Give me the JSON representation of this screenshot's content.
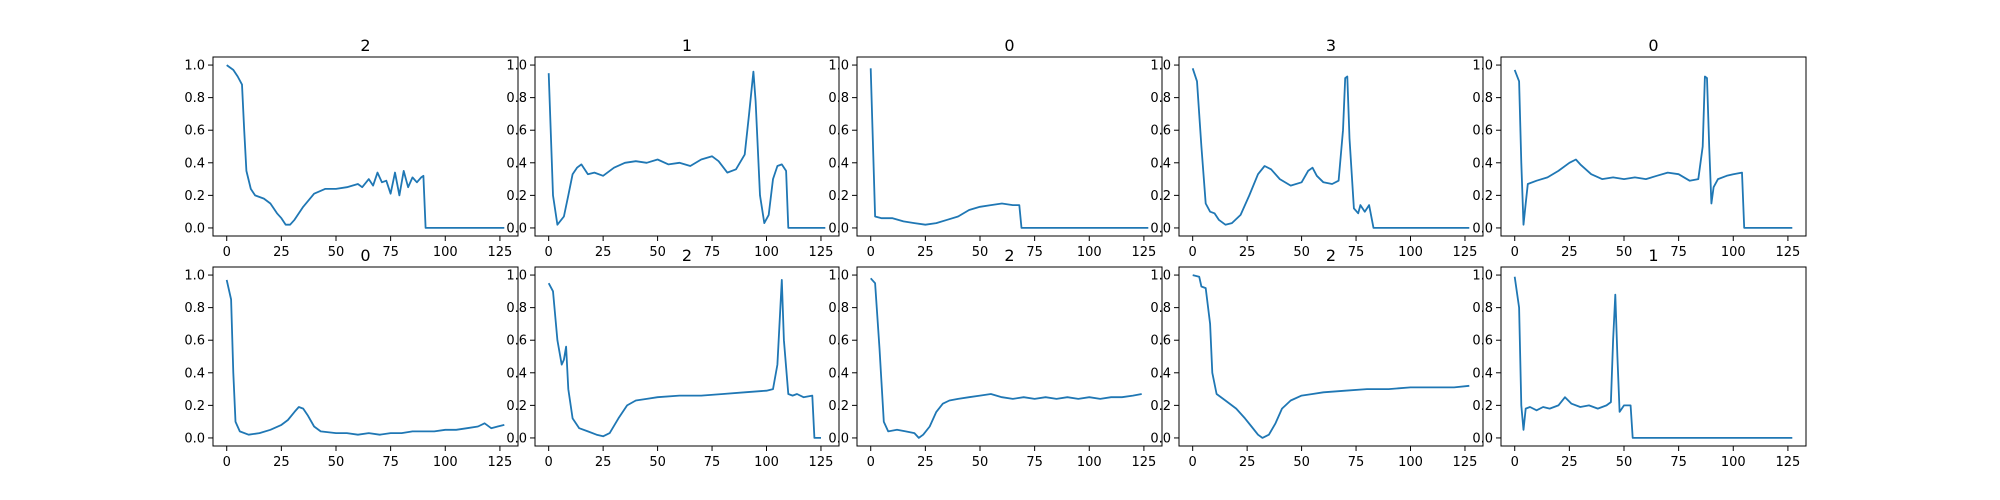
{
  "style": {
    "line_color": "#1f77b4"
  },
  "chart_data": [
    {
      "type": "line",
      "title": "2",
      "x_ticks": [
        "0",
        "25",
        "50",
        "75",
        "100",
        "125"
      ],
      "y_ticks": [
        "0.0",
        "0.2",
        "0.4",
        "0.6",
        "0.8",
        "1.0"
      ],
      "xlim": [
        0,
        127
      ],
      "ylim": [
        0,
        1
      ],
      "points": [
        [
          0,
          1.0
        ],
        [
          3,
          0.97
        ],
        [
          5,
          0.93
        ],
        [
          7,
          0.88
        ],
        [
          8,
          0.6
        ],
        [
          9,
          0.35
        ],
        [
          11,
          0.24
        ],
        [
          13,
          0.2
        ],
        [
          17,
          0.18
        ],
        [
          20,
          0.15
        ],
        [
          23,
          0.09
        ],
        [
          25,
          0.06
        ],
        [
          27,
          0.02
        ],
        [
          29,
          0.02
        ],
        [
          31,
          0.05
        ],
        [
          35,
          0.13
        ],
        [
          40,
          0.21
        ],
        [
          45,
          0.24
        ],
        [
          50,
          0.24
        ],
        [
          55,
          0.25
        ],
        [
          60,
          0.27
        ],
        [
          62,
          0.25
        ],
        [
          65,
          0.3
        ],
        [
          67,
          0.26
        ],
        [
          69,
          0.34
        ],
        [
          71,
          0.28
        ],
        [
          73,
          0.29
        ],
        [
          75,
          0.21
        ],
        [
          77,
          0.34
        ],
        [
          79,
          0.2
        ],
        [
          81,
          0.35
        ],
        [
          83,
          0.25
        ],
        [
          85,
          0.31
        ],
        [
          87,
          0.28
        ],
        [
          89,
          0.31
        ],
        [
          90,
          0.32
        ],
        [
          91,
          0.0
        ],
        [
          127,
          0.0
        ]
      ]
    },
    {
      "type": "line",
      "title": "1",
      "x_ticks": [
        "0",
        "25",
        "50",
        "75",
        "100",
        "125"
      ],
      "y_ticks": [
        "0.0",
        "0.2",
        "0.4",
        "0.6",
        "0.8",
        "1.0"
      ],
      "xlim": [
        0,
        127
      ],
      "ylim": [
        0,
        1
      ],
      "points": [
        [
          0,
          0.95
        ],
        [
          2,
          0.2
        ],
        [
          4,
          0.02
        ],
        [
          7,
          0.07
        ],
        [
          9,
          0.2
        ],
        [
          11,
          0.33
        ],
        [
          13,
          0.37
        ],
        [
          15,
          0.39
        ],
        [
          18,
          0.33
        ],
        [
          21,
          0.34
        ],
        [
          25,
          0.32
        ],
        [
          30,
          0.37
        ],
        [
          35,
          0.4
        ],
        [
          40,
          0.41
        ],
        [
          45,
          0.4
        ],
        [
          50,
          0.42
        ],
        [
          55,
          0.39
        ],
        [
          60,
          0.4
        ],
        [
          65,
          0.38
        ],
        [
          70,
          0.42
        ],
        [
          75,
          0.44
        ],
        [
          78,
          0.41
        ],
        [
          82,
          0.34
        ],
        [
          86,
          0.36
        ],
        [
          90,
          0.45
        ],
        [
          92,
          0.7
        ],
        [
          94,
          0.96
        ],
        [
          95,
          0.78
        ],
        [
          97,
          0.2
        ],
        [
          99,
          0.03
        ],
        [
          101,
          0.08
        ],
        [
          103,
          0.3
        ],
        [
          105,
          0.38
        ],
        [
          107,
          0.39
        ],
        [
          109,
          0.35
        ],
        [
          110,
          0.0
        ],
        [
          127,
          0.0
        ]
      ]
    },
    {
      "type": "line",
      "title": "0",
      "x_ticks": [
        "0",
        "25",
        "50",
        "75",
        "100",
        "125"
      ],
      "y_ticks": [
        "0.0",
        "0.2",
        "0.4",
        "0.6",
        "0.8",
        "1.0"
      ],
      "xlim": [
        0,
        127
      ],
      "ylim": [
        0,
        1
      ],
      "points": [
        [
          0,
          0.98
        ],
        [
          2,
          0.07
        ],
        [
          5,
          0.06
        ],
        [
          10,
          0.06
        ],
        [
          15,
          0.04
        ],
        [
          20,
          0.03
        ],
        [
          25,
          0.02
        ],
        [
          30,
          0.03
        ],
        [
          35,
          0.05
        ],
        [
          40,
          0.07
        ],
        [
          45,
          0.11
        ],
        [
          50,
          0.13
        ],
        [
          55,
          0.14
        ],
        [
          60,
          0.15
        ],
        [
          65,
          0.14
        ],
        [
          68,
          0.14
        ],
        [
          69,
          0.0
        ],
        [
          127,
          0.0
        ]
      ]
    },
    {
      "type": "line",
      "title": "3",
      "x_ticks": [
        "0",
        "25",
        "50",
        "75",
        "100",
        "125"
      ],
      "y_ticks": [
        "0.0",
        "0.2",
        "0.4",
        "0.6",
        "0.8",
        "1.0"
      ],
      "xlim": [
        0,
        127
      ],
      "ylim": [
        0,
        1
      ],
      "points": [
        [
          0,
          0.98
        ],
        [
          2,
          0.9
        ],
        [
          4,
          0.5
        ],
        [
          6,
          0.15
        ],
        [
          8,
          0.1
        ],
        [
          10,
          0.09
        ],
        [
          12,
          0.05
        ],
        [
          15,
          0.02
        ],
        [
          18,
          0.03
        ],
        [
          22,
          0.08
        ],
        [
          26,
          0.2
        ],
        [
          30,
          0.33
        ],
        [
          33,
          0.38
        ],
        [
          36,
          0.36
        ],
        [
          40,
          0.3
        ],
        [
          45,
          0.26
        ],
        [
          50,
          0.28
        ],
        [
          53,
          0.35
        ],
        [
          55,
          0.37
        ],
        [
          57,
          0.32
        ],
        [
          60,
          0.28
        ],
        [
          64,
          0.27
        ],
        [
          67,
          0.29
        ],
        [
          69,
          0.6
        ],
        [
          70,
          0.92
        ],
        [
          71,
          0.93
        ],
        [
          72,
          0.55
        ],
        [
          74,
          0.12
        ],
        [
          76,
          0.09
        ],
        [
          77,
          0.14
        ],
        [
          79,
          0.1
        ],
        [
          81,
          0.14
        ],
        [
          83,
          0.0
        ],
        [
          127,
          0.0
        ]
      ]
    },
    {
      "type": "line",
      "title": "0",
      "x_ticks": [
        "0",
        "25",
        "50",
        "75",
        "100",
        "125"
      ],
      "y_ticks": [
        "0.0",
        "0.2",
        "0.4",
        "0.6",
        "0.8",
        "1.0"
      ],
      "xlim": [
        0,
        127
      ],
      "ylim": [
        0,
        1
      ],
      "points": [
        [
          0,
          0.97
        ],
        [
          2,
          0.9
        ],
        [
          3,
          0.4
        ],
        [
          4,
          0.02
        ],
        [
          5,
          0.15
        ],
        [
          6,
          0.27
        ],
        [
          10,
          0.29
        ],
        [
          15,
          0.31
        ],
        [
          20,
          0.35
        ],
        [
          25,
          0.4
        ],
        [
          28,
          0.42
        ],
        [
          30,
          0.39
        ],
        [
          35,
          0.33
        ],
        [
          40,
          0.3
        ],
        [
          45,
          0.31
        ],
        [
          50,
          0.3
        ],
        [
          55,
          0.31
        ],
        [
          60,
          0.3
        ],
        [
          65,
          0.32
        ],
        [
          70,
          0.34
        ],
        [
          75,
          0.33
        ],
        [
          80,
          0.29
        ],
        [
          84,
          0.3
        ],
        [
          86,
          0.5
        ],
        [
          87,
          0.93
        ],
        [
          88,
          0.92
        ],
        [
          89,
          0.5
        ],
        [
          90,
          0.15
        ],
        [
          91,
          0.25
        ],
        [
          93,
          0.3
        ],
        [
          97,
          0.32
        ],
        [
          100,
          0.33
        ],
        [
          104,
          0.34
        ],
        [
          105,
          0.0
        ],
        [
          127,
          0.0
        ]
      ]
    },
    {
      "type": "line",
      "title": "0",
      "x_ticks": [
        "0",
        "25",
        "50",
        "75",
        "100",
        "125"
      ],
      "y_ticks": [
        "0.0",
        "0.2",
        "0.4",
        "0.6",
        "0.8",
        "1.0"
      ],
      "xlim": [
        0,
        127
      ],
      "ylim": [
        0,
        1
      ],
      "points": [
        [
          0,
          0.97
        ],
        [
          2,
          0.85
        ],
        [
          3,
          0.4
        ],
        [
          4,
          0.1
        ],
        [
          6,
          0.04
        ],
        [
          10,
          0.02
        ],
        [
          15,
          0.03
        ],
        [
          20,
          0.05
        ],
        [
          25,
          0.08
        ],
        [
          28,
          0.11
        ],
        [
          31,
          0.16
        ],
        [
          33,
          0.19
        ],
        [
          35,
          0.18
        ],
        [
          37,
          0.14
        ],
        [
          40,
          0.07
        ],
        [
          43,
          0.04
        ],
        [
          50,
          0.03
        ],
        [
          55,
          0.03
        ],
        [
          60,
          0.02
        ],
        [
          65,
          0.03
        ],
        [
          70,
          0.02
        ],
        [
          75,
          0.03
        ],
        [
          80,
          0.03
        ],
        [
          85,
          0.04
        ],
        [
          90,
          0.04
        ],
        [
          95,
          0.04
        ],
        [
          100,
          0.05
        ],
        [
          105,
          0.05
        ],
        [
          110,
          0.06
        ],
        [
          115,
          0.07
        ],
        [
          118,
          0.09
        ],
        [
          121,
          0.06
        ],
        [
          124,
          0.07
        ],
        [
          127,
          0.08
        ]
      ]
    },
    {
      "type": "line",
      "title": "2",
      "x_ticks": [
        "0",
        "25",
        "50",
        "75",
        "100",
        "125"
      ],
      "y_ticks": [
        "0.0",
        "0.2",
        "0.4",
        "0.6",
        "0.8",
        "1.0"
      ],
      "xlim": [
        0,
        127
      ],
      "ylim": [
        0,
        1
      ],
      "points": [
        [
          0,
          0.95
        ],
        [
          2,
          0.9
        ],
        [
          4,
          0.6
        ],
        [
          6,
          0.45
        ],
        [
          7,
          0.48
        ],
        [
          8,
          0.56
        ],
        [
          9,
          0.3
        ],
        [
          11,
          0.12
        ],
        [
          14,
          0.06
        ],
        [
          18,
          0.04
        ],
        [
          22,
          0.02
        ],
        [
          25,
          0.01
        ],
        [
          28,
          0.03
        ],
        [
          32,
          0.12
        ],
        [
          36,
          0.2
        ],
        [
          40,
          0.23
        ],
        [
          45,
          0.24
        ],
        [
          50,
          0.25
        ],
        [
          60,
          0.26
        ],
        [
          70,
          0.26
        ],
        [
          80,
          0.27
        ],
        [
          90,
          0.28
        ],
        [
          100,
          0.29
        ],
        [
          103,
          0.3
        ],
        [
          105,
          0.45
        ],
        [
          107,
          0.97
        ],
        [
          108,
          0.6
        ],
        [
          110,
          0.27
        ],
        [
          112,
          0.26
        ],
        [
          114,
          0.27
        ],
        [
          117,
          0.25
        ],
        [
          121,
          0.26
        ],
        [
          122,
          0.0
        ],
        [
          125,
          0.0
        ]
      ]
    },
    {
      "type": "line",
      "title": "2",
      "x_ticks": [
        "0",
        "25",
        "50",
        "75",
        "100",
        "125"
      ],
      "y_ticks": [
        "0.0",
        "0.2",
        "0.4",
        "0.6",
        "0.8",
        "1.0"
      ],
      "xlim": [
        0,
        127
      ],
      "ylim": [
        0,
        1
      ],
      "points": [
        [
          0,
          0.98
        ],
        [
          2,
          0.95
        ],
        [
          4,
          0.55
        ],
        [
          6,
          0.1
        ],
        [
          8,
          0.04
        ],
        [
          12,
          0.05
        ],
        [
          16,
          0.04
        ],
        [
          20,
          0.03
        ],
        [
          22,
          0.0
        ],
        [
          24,
          0.02
        ],
        [
          27,
          0.07
        ],
        [
          30,
          0.16
        ],
        [
          33,
          0.21
        ],
        [
          36,
          0.23
        ],
        [
          40,
          0.24
        ],
        [
          45,
          0.25
        ],
        [
          50,
          0.26
        ],
        [
          55,
          0.27
        ],
        [
          60,
          0.25
        ],
        [
          65,
          0.24
        ],
        [
          70,
          0.25
        ],
        [
          75,
          0.24
        ],
        [
          80,
          0.25
        ],
        [
          85,
          0.24
        ],
        [
          90,
          0.25
        ],
        [
          95,
          0.24
        ],
        [
          100,
          0.25
        ],
        [
          105,
          0.24
        ],
        [
          110,
          0.25
        ],
        [
          115,
          0.25
        ],
        [
          120,
          0.26
        ],
        [
          124,
          0.27
        ]
      ]
    },
    {
      "type": "line",
      "title": "2",
      "x_ticks": [
        "0",
        "25",
        "50",
        "75",
        "100",
        "125"
      ],
      "y_ticks": [
        "0.0",
        "0.2",
        "0.4",
        "0.6",
        "0.8",
        "1.0"
      ],
      "xlim": [
        0,
        127
      ],
      "ylim": [
        0,
        1
      ],
      "points": [
        [
          0,
          1.0
        ],
        [
          3,
          0.99
        ],
        [
          4,
          0.93
        ],
        [
          6,
          0.92
        ],
        [
          8,
          0.7
        ],
        [
          9,
          0.4
        ],
        [
          11,
          0.27
        ],
        [
          15,
          0.23
        ],
        [
          20,
          0.18
        ],
        [
          24,
          0.12
        ],
        [
          27,
          0.07
        ],
        [
          30,
          0.02
        ],
        [
          32,
          0.0
        ],
        [
          35,
          0.02
        ],
        [
          38,
          0.09
        ],
        [
          41,
          0.18
        ],
        [
          45,
          0.23
        ],
        [
          50,
          0.26
        ],
        [
          55,
          0.27
        ],
        [
          60,
          0.28
        ],
        [
          70,
          0.29
        ],
        [
          80,
          0.3
        ],
        [
          90,
          0.3
        ],
        [
          100,
          0.31
        ],
        [
          110,
          0.31
        ],
        [
          120,
          0.31
        ],
        [
          127,
          0.32
        ]
      ]
    },
    {
      "type": "line",
      "title": "1",
      "x_ticks": [
        "0",
        "25",
        "50",
        "75",
        "100",
        "125"
      ],
      "y_ticks": [
        "0.0",
        "0.2",
        "0.4",
        "0.6",
        "0.8",
        "1.0"
      ],
      "xlim": [
        0,
        127
      ],
      "ylim": [
        0,
        1
      ],
      "points": [
        [
          0,
          0.99
        ],
        [
          2,
          0.8
        ],
        [
          3,
          0.2
        ],
        [
          4,
          0.05
        ],
        [
          5,
          0.18
        ],
        [
          7,
          0.19
        ],
        [
          10,
          0.17
        ],
        [
          13,
          0.19
        ],
        [
          16,
          0.18
        ],
        [
          20,
          0.2
        ],
        [
          23,
          0.25
        ],
        [
          26,
          0.21
        ],
        [
          30,
          0.19
        ],
        [
          34,
          0.2
        ],
        [
          38,
          0.18
        ],
        [
          42,
          0.2
        ],
        [
          44,
          0.22
        ],
        [
          45,
          0.6
        ],
        [
          46,
          0.88
        ],
        [
          47,
          0.5
        ],
        [
          48,
          0.16
        ],
        [
          50,
          0.2
        ],
        [
          53,
          0.2
        ],
        [
          54,
          0.0
        ],
        [
          127,
          0.0
        ]
      ]
    }
  ]
}
